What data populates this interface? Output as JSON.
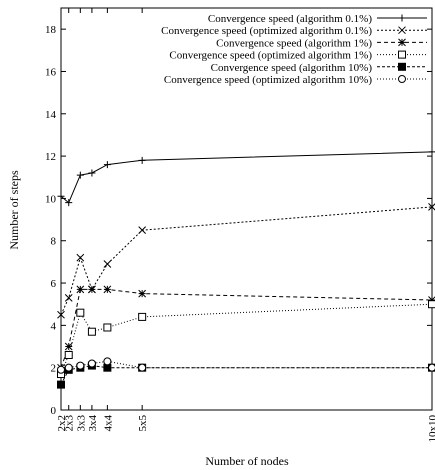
{
  "chart_data": {
    "type": "line",
    "title": "",
    "xlabel": "Number of nodes",
    "ylabel": "Number of steps",
    "x_ticks": [
      {
        "label": "2x2",
        "nodes": 4
      },
      {
        "label": "2x3",
        "nodes": 6
      },
      {
        "label": "3x3",
        "nodes": 9
      },
      {
        "label": "3x4",
        "nodes": 12
      },
      {
        "label": "4x4",
        "nodes": 16
      },
      {
        "label": "5x5",
        "nodes": 25
      },
      {
        "label": "10x10",
        "nodes": 100
      }
    ],
    "xlim": [
      4,
      100
    ],
    "ylim": [
      0,
      19
    ],
    "y_ticks": [
      0,
      2,
      4,
      6,
      8,
      10,
      12,
      14,
      16,
      18
    ],
    "grid": false,
    "legend_position": "top-right",
    "series": [
      {
        "name": "Convergence speed (algorithm 0.1%)",
        "marker": "plus",
        "dash": "",
        "values": [
          10.1,
          9.8,
          11.1,
          11.2,
          11.6,
          11.8,
          12.2
        ]
      },
      {
        "name": "Convergence speed (optimized algorithm 0.1%)",
        "marker": "x",
        "dash": "2,2",
        "values": [
          4.5,
          5.3,
          7.2,
          5.7,
          6.9,
          8.5,
          9.6
        ]
      },
      {
        "name": "Convergence speed (algorithm 1%)",
        "marker": "star",
        "dash": "4,3",
        "values": [
          2.0,
          3.0,
          5.7,
          5.7,
          5.7,
          5.5,
          5.2
        ]
      },
      {
        "name": "Convergence speed (optimized algorithm 1%)",
        "marker": "square-open",
        "dash": "1,2",
        "values": [
          1.7,
          2.6,
          4.6,
          3.7,
          3.9,
          4.4,
          5.0
        ]
      },
      {
        "name": "Convergence speed (algorithm 10%)",
        "marker": "square-filled",
        "dash": "3,2",
        "values": [
          1.2,
          1.9,
          2.0,
          2.1,
          2.0,
          2.0,
          2.0
        ]
      },
      {
        "name": "Convergence speed (optimized algorithm 10%)",
        "marker": "circle-open",
        "dash": "1,2",
        "values": [
          1.9,
          2.0,
          2.1,
          2.2,
          2.3,
          2.0,
          2.0
        ]
      }
    ]
  }
}
